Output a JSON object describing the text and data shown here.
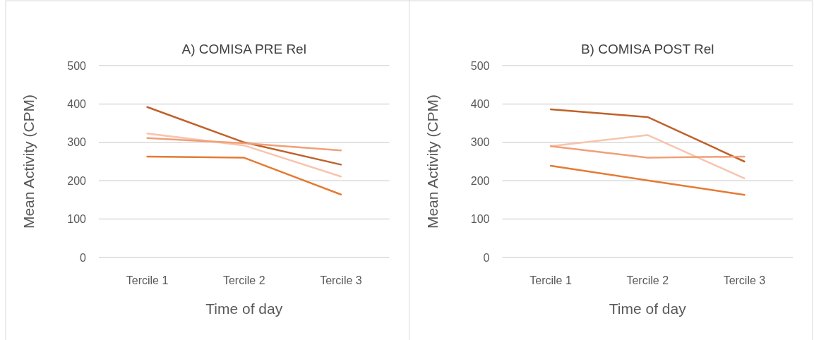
{
  "chart_data": [
    {
      "type": "line",
      "title": "A) COMISA PRE Rel",
      "xlabel": "Time of day",
      "ylabel": "Mean Activity (CPM)",
      "categories": [
        "Tercile 1",
        "Tercile 2",
        "Tercile 3"
      ],
      "ylim": [
        0,
        500
      ],
      "yticks": [
        0,
        100,
        200,
        300,
        400,
        500
      ],
      "grid": "y",
      "series": [
        {
          "color": "#c0612b",
          "values": [
            392,
            300,
            242
          ]
        },
        {
          "color": "#f8c4ae",
          "values": [
            323,
            292,
            211
          ]
        },
        {
          "color": "#f0a077",
          "values": [
            311,
            298,
            279
          ]
        },
        {
          "color": "#e57a34",
          "values": [
            263,
            260,
            164
          ]
        }
      ]
    },
    {
      "type": "line",
      "title": "B) COMISA POST Rel",
      "xlabel": "Time of day",
      "ylabel": "Mean Activity (CPM)",
      "categories": [
        "Tercile 1",
        "Tercile 2",
        "Tercile 3"
      ],
      "ylim": [
        0,
        500
      ],
      "yticks": [
        0,
        100,
        200,
        300,
        400,
        500
      ],
      "grid": "y",
      "series": [
        {
          "color": "#c0612b",
          "values": [
            386,
            366,
            250
          ]
        },
        {
          "color": "#f8c4ae",
          "values": [
            290,
            319,
            206
          ]
        },
        {
          "color": "#f0a077",
          "values": [
            290,
            260,
            263
          ]
        },
        {
          "color": "#e57a34",
          "values": [
            239,
            201,
            163
          ]
        }
      ]
    }
  ]
}
